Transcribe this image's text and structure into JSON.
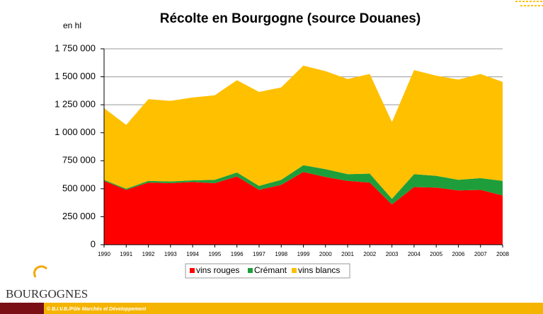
{
  "chart_data": {
    "type": "stacked-area",
    "title": "Récolte en Bourgogne (source Douanes)",
    "y_label": "en hl",
    "categories": [
      "1990",
      "1991",
      "1992",
      "1993",
      "1994",
      "1995",
      "1996",
      "1997",
      "1998",
      "1999",
      "2000",
      "2001",
      "2002",
      "2003",
      "2004",
      "2005",
      "2006",
      "2007",
      "2008"
    ],
    "series": [
      {
        "name": "vins rouges",
        "color": "#ff0000",
        "values": [
          570000,
          490000,
          555000,
          550000,
          560000,
          550000,
          610000,
          490000,
          535000,
          650000,
          605000,
          570000,
          555000,
          360000,
          515000,
          510000,
          485000,
          490000,
          440000
        ]
      },
      {
        "name": "Crémant",
        "color": "#1e9e3a",
        "values": [
          10000,
          10000,
          15000,
          15000,
          15000,
          30000,
          35000,
          35000,
          45000,
          60000,
          70000,
          60000,
          80000,
          50000,
          115000,
          105000,
          95000,
          105000,
          130000
        ]
      },
      {
        "name": "vins blancs",
        "color": "#ffc000",
        "values": [
          640000,
          570000,
          730000,
          720000,
          740000,
          755000,
          825000,
          840000,
          825000,
          890000,
          875000,
          850000,
          890000,
          685000,
          930000,
          895000,
          895000,
          930000,
          885000
        ]
      }
    ],
    "ylim": [
      0,
      1750000
    ],
    "yticks": [
      0,
      {
        "value": 250000,
        "label": "250 000"
      },
      {
        "value": 500000,
        "label": "500 000"
      },
      {
        "value": 750000,
        "label": "750 000"
      },
      {
        "value": 1000000,
        "label": "1 000 000"
      },
      {
        "value": 1250000,
        "label": "1 250 000"
      },
      {
        "value": 1500000,
        "label": "1 500 000"
      },
      {
        "value": 1750000,
        "label": "1 750 000"
      }
    ],
    "grid": true,
    "legend": "bottom"
  },
  "footer": {
    "logo": "BOURGOGNES",
    "credit": "© B.I.V.B./Pôle Marchés et Développement"
  }
}
